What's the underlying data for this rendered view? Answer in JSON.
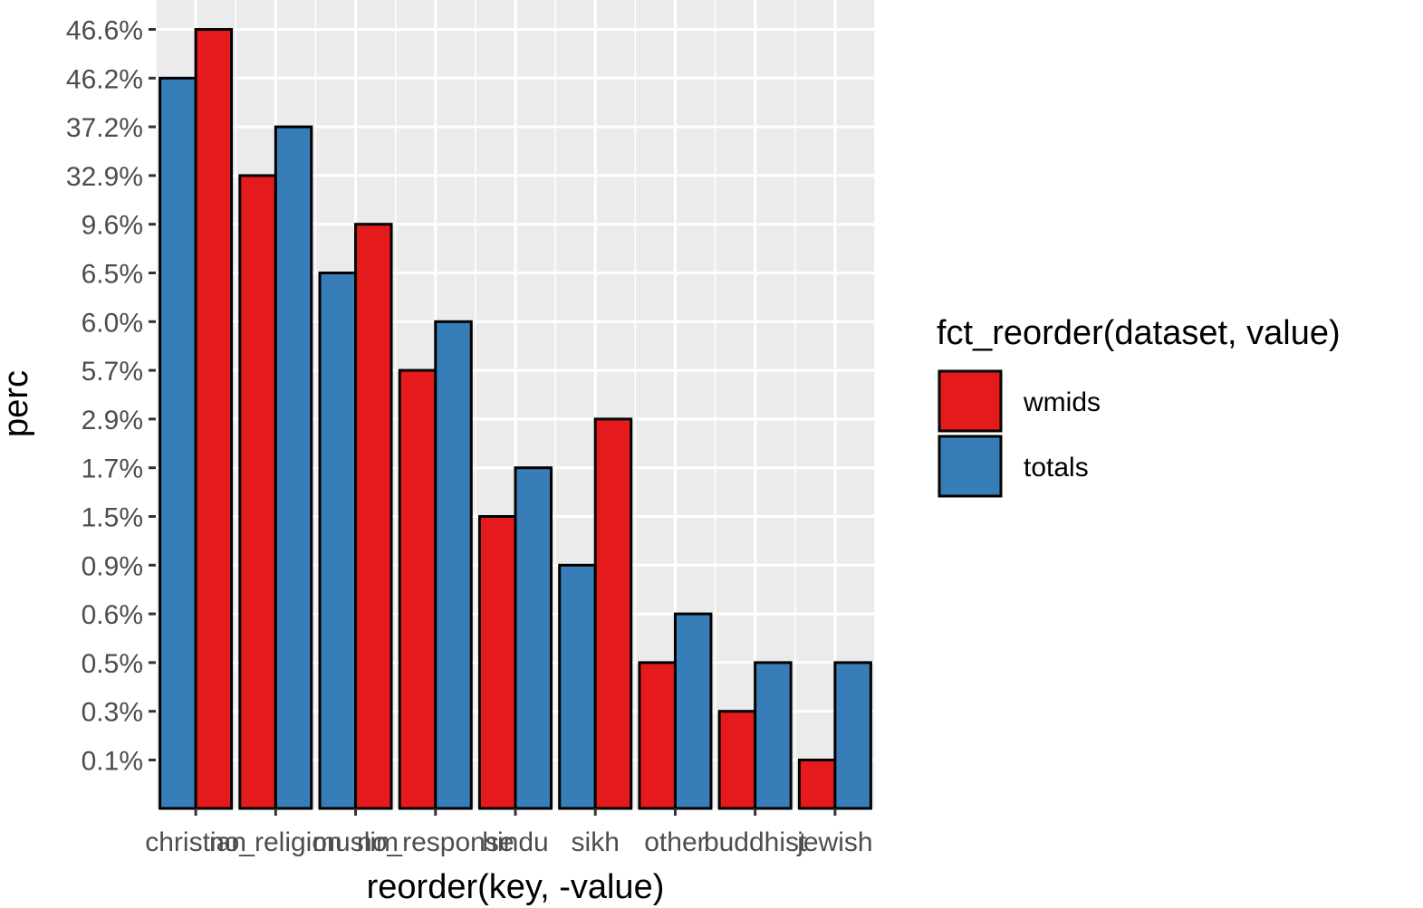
{
  "chart_data": {
    "type": "bar",
    "title": "",
    "xlabel": "reorder(key, -value)",
    "ylabel": "perc",
    "categories": [
      "christian",
      "no_religion",
      "muslim",
      "no_response",
      "hindu",
      "sikh",
      "other",
      "buddhist",
      "jewish"
    ],
    "y_tick_labels": [
      "0.1%",
      "0.3%",
      "0.5%",
      "0.6%",
      "0.9%",
      "1.5%",
      "1.7%",
      "2.9%",
      "5.7%",
      "6.0%",
      "6.5%",
      "9.6%",
      "32.9%",
      "37.2%",
      "46.2%",
      "46.6%"
    ],
    "bar_order": [
      "left",
      "right"
    ],
    "bars": [
      {
        "category": "christian",
        "left": {
          "dataset": "totals",
          "label": "46.2%"
        },
        "right": {
          "dataset": "wmids",
          "label": "46.6%"
        }
      },
      {
        "category": "no_religion",
        "left": {
          "dataset": "wmids",
          "label": "32.9%"
        },
        "right": {
          "dataset": "totals",
          "label": "37.2%"
        }
      },
      {
        "category": "muslim",
        "left": {
          "dataset": "totals",
          "label": "6.5%"
        },
        "right": {
          "dataset": "wmids",
          "label": "9.6%"
        }
      },
      {
        "category": "no_response",
        "left": {
          "dataset": "wmids",
          "label": "5.7%"
        },
        "right": {
          "dataset": "totals",
          "label": "6.0%"
        }
      },
      {
        "category": "hindu",
        "left": {
          "dataset": "wmids",
          "label": "1.5%"
        },
        "right": {
          "dataset": "totals",
          "label": "1.7%"
        }
      },
      {
        "category": "sikh",
        "left": {
          "dataset": "totals",
          "label": "0.9%"
        },
        "right": {
          "dataset": "wmids",
          "label": "2.9%"
        }
      },
      {
        "category": "other",
        "left": {
          "dataset": "wmids",
          "label": "0.5%"
        },
        "right": {
          "dataset": "totals",
          "label": "0.6%"
        }
      },
      {
        "category": "buddhist",
        "left": {
          "dataset": "wmids",
          "label": "0.3%"
        },
        "right": {
          "dataset": "totals",
          "label": "0.5%"
        }
      },
      {
        "category": "jewish",
        "left": {
          "dataset": "wmids",
          "label": "0.1%"
        },
        "right": {
          "dataset": "totals",
          "label": "0.5%"
        }
      }
    ],
    "series": [
      {
        "name": "wmids",
        "values": [
          46.6,
          32.9,
          9.6,
          5.7,
          1.5,
          2.9,
          0.5,
          0.3,
          0.1
        ]
      },
      {
        "name": "totals",
        "values": [
          46.2,
          37.2,
          6.5,
          6.0,
          1.7,
          0.9,
          0.6,
          0.5,
          0.5
        ]
      }
    ],
    "legend": {
      "title": "fct_reorder(dataset, value)",
      "placement": "right",
      "entries": [
        {
          "name": "wmids",
          "color": "#e41a1c"
        },
        {
          "name": "totals",
          "color": "#377eb8"
        }
      ]
    },
    "colors": {
      "wmids": "#e41a1c",
      "totals": "#377eb8",
      "panel": "#ebebeb",
      "grid": "#ffffff",
      "bar_outline": "#000000"
    },
    "grid": true
  }
}
